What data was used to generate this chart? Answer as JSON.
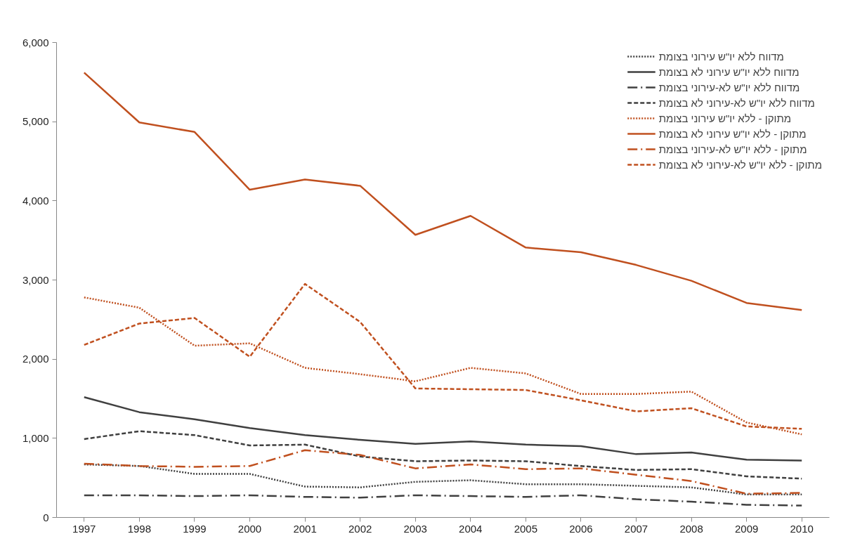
{
  "chart_data": {
    "type": "line",
    "categories": [
      "1997",
      "1998",
      "1999",
      "2000",
      "2001",
      "2002",
      "2003",
      "2004",
      "2005",
      "2006",
      "2007",
      "2008",
      "2009",
      "2010"
    ],
    "ylim": [
      0,
      6000
    ],
    "yticks": [
      0,
      {
        "value": 1000,
        "label": "1,000"
      },
      {
        "value": 2000,
        "label": "2,000"
      },
      {
        "value": 3000,
        "label": "3,000"
      },
      {
        "value": 4000,
        "label": "4,000"
      },
      {
        "value": 5000,
        "label": "5,000"
      },
      {
        "value": 6000,
        "label": "6,000"
      }
    ],
    "grid": false,
    "legend": "top right",
    "series": [
      {
        "name": "מדווח ללא יו\"ש עירוני בצומת",
        "color": "#404040",
        "line_style": "dotted",
        "values": [
          670,
          650,
          550,
          550,
          390,
          380,
          450,
          470,
          420,
          420,
          400,
          380,
          290,
          290
        ]
      },
      {
        "name": "מדווח ללא יו\"ש עירוני לא בצומת",
        "color": "#404040",
        "line_style": "solid",
        "values": [
          1520,
          1330,
          1240,
          1130,
          1040,
          980,
          930,
          960,
          920,
          900,
          800,
          820,
          730,
          720
        ]
      },
      {
        "name": "מדווח ללא יו\"ש לא-עירוני בצומת",
        "color": "#404040",
        "line_style": "dashdot",
        "values": [
          280,
          280,
          270,
          280,
          260,
          250,
          280,
          270,
          260,
          280,
          230,
          200,
          160,
          150
        ]
      },
      {
        "name": "מדווח ללא יו\"ש לא-עירוני לא בצומת",
        "color": "#404040",
        "line_style": "dashed",
        "values": [
          990,
          1090,
          1040,
          910,
          920,
          770,
          710,
          720,
          710,
          650,
          600,
          610,
          520,
          490
        ]
      },
      {
        "name": "מתוקן - ללא יו\"ש עירוני בצומת",
        "color": "#c0501f",
        "line_style": "dotted",
        "values": [
          2780,
          2650,
          2170,
          2200,
          1890,
          1810,
          1720,
          1890,
          1820,
          1560,
          1560,
          1590,
          1200,
          1050
        ]
      },
      {
        "name": "מתוקן - ללא יו\"ש עירוני לא בצומת",
        "color": "#c0501f",
        "line_style": "solid",
        "values": [
          5620,
          4990,
          4870,
          4140,
          4270,
          4190,
          3570,
          3810,
          3410,
          3350,
          3190,
          2990,
          2710,
          2620
        ]
      },
      {
        "name": "מתוקן - ללא יו\"ש לא-עירוני בצומת",
        "color": "#c0501f",
        "line_style": "dashdot",
        "values": [
          680,
          650,
          640,
          650,
          850,
          790,
          620,
          670,
          610,
          620,
          540,
          460,
          300,
          310
        ]
      },
      {
        "name": "מתוקן - ללא יו\"ש לא-עירוני לא בצומת",
        "color": "#c0501f",
        "line_style": "dashed",
        "values": [
          2180,
          2450,
          2520,
          2030,
          2950,
          2470,
          1630,
          1620,
          1610,
          1480,
          1340,
          1380,
          1150,
          1120
        ]
      }
    ]
  }
}
